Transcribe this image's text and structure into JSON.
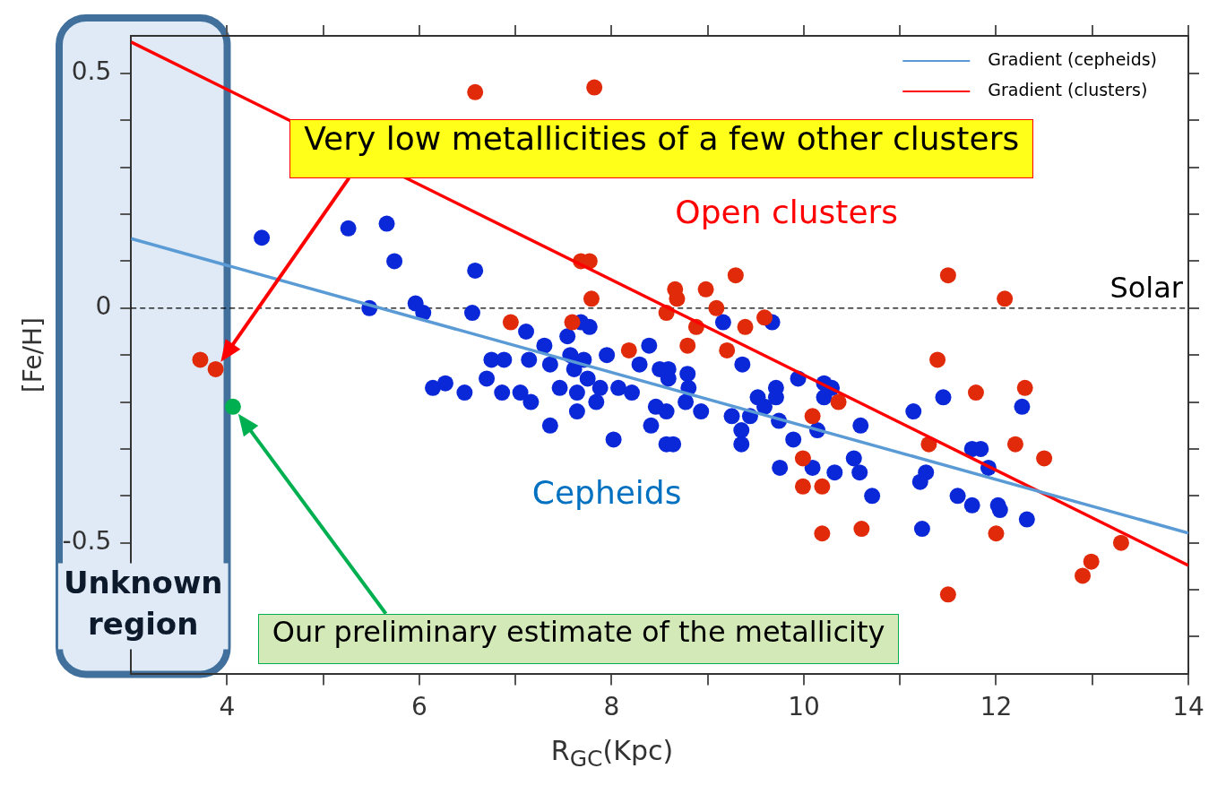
{
  "chart_data": {
    "type": "scatter",
    "xlabel": "R$_{GC}$(Kpc)",
    "ylabel": "[Fe/H]",
    "xlim": [
      3,
      14
    ],
    "xticks": [
      4,
      {
        "value": 5,
        "label": null
      },
      6,
      {
        "value": 7,
        "label": null
      },
      8,
      {
        "value": 9,
        "label": null
      },
      10,
      {
        "value": 11,
        "label": null
      },
      12,
      {
        "value": 13,
        "label": null
      },
      14
    ],
    "ylim": [
      -0.78,
      0.58
    ],
    "yticks": [
      {
        "value": -0.7,
        "label": null
      },
      {
        "value": -0.6,
        "label": null
      },
      -0.5,
      {
        "value": -0.4,
        "label": null
      },
      {
        "value": -0.3,
        "label": null
      },
      {
        "value": -0.2,
        "label": null
      },
      {
        "value": -0.1,
        "label": null
      },
      0,
      {
        "value": 0.1,
        "label": null
      },
      {
        "value": 0.2,
        "label": null
      },
      {
        "value": 0.3,
        "label": null
      },
      {
        "value": 0.4,
        "label": null
      },
      0.5
    ],
    "marker": "circle",
    "grid": false,
    "legend": "top right",
    "series": [
      {
        "name": "Open clusters",
        "type": "scatter",
        "color": "#e02a0a",
        "x": [
          3.72,
          3.88,
          6.58,
          7.82,
          7.68,
          7.77,
          7.79,
          6.95,
          7.59,
          8.18,
          9.29,
          8.66,
          8.98,
          8.68,
          9.09,
          8.57,
          9.59,
          9.39,
          8.88,
          8.79,
          9.2,
          11.5,
          12.09,
          10.36,
          10.09,
          11.39,
          11.79,
          12.3,
          11.3,
          12.2,
          12.5,
          9.99,
          9.99,
          10.19,
          10.19,
          10.6,
          12.0,
          13.3,
          12.99,
          12.9,
          11.5
        ],
        "values": [
          -0.11,
          -0.13,
          0.46,
          0.47,
          0.1,
          0.1,
          0.02,
          -0.03,
          -0.03,
          -0.09,
          0.07,
          0.04,
          0.04,
          0.02,
          0.0,
          -0.01,
          -0.02,
          -0.04,
          -0.04,
          -0.08,
          -0.09,
          0.07,
          0.02,
          -0.2,
          -0.23,
          -0.11,
          -0.18,
          -0.17,
          -0.29,
          -0.29,
          -0.32,
          -0.32,
          -0.38,
          -0.38,
          -0.48,
          -0.47,
          -0.48,
          -0.5,
          -0.54,
          -0.57,
          -0.61
        ]
      },
      {
        "name": "Cepheids",
        "type": "scatter",
        "color": "#0a28d8",
        "x": [
          4.36,
          5.26,
          5.66,
          5.74,
          6.58,
          5.48,
          5.96,
          6.04,
          6.55,
          7.11,
          7.77,
          7.68,
          8.39,
          7.3,
          7.54,
          6.75,
          6.88,
          7.14,
          7.36,
          7.57,
          7.71,
          7.95,
          8.29,
          8.5,
          6.7,
          7.61,
          7.75,
          7.88,
          8.07,
          8.21,
          7.46,
          7.64,
          6.14,
          6.27,
          6.47,
          6.86,
          7.05,
          7.16,
          7.84,
          7.64,
          8.46,
          7.36,
          8.02,
          8.41,
          8.57,
          8.59,
          8.59,
          8.79,
          8.8,
          8.57,
          8.77,
          8.93,
          8.64,
          9.16,
          9.67,
          9.36,
          9.25,
          9.44,
          9.35,
          9.35,
          9.52,
          9.71,
          9.71,
          9.59,
          9.74,
          9.89,
          9.75,
          9.94,
          10.21,
          10.29,
          10.21,
          10.14,
          10.09,
          10.32,
          10.59,
          10.52,
          10.58,
          10.71,
          11.14,
          11.45,
          12.27,
          11.75,
          11.84,
          11.92,
          11.27,
          11.21,
          11.6,
          11.75,
          12.02,
          12.04,
          12.32,
          11.23
        ],
        "values": [
          0.15,
          0.17,
          0.18,
          0.1,
          0.08,
          0.0,
          0.01,
          -0.01,
          -0.01,
          -0.05,
          -0.04,
          -0.03,
          -0.08,
          -0.08,
          -0.06,
          -0.11,
          -0.11,
          -0.11,
          -0.12,
          -0.1,
          -0.11,
          -0.1,
          -0.12,
          -0.13,
          -0.15,
          -0.13,
          -0.15,
          -0.17,
          -0.17,
          -0.18,
          -0.17,
          -0.18,
          -0.17,
          -0.16,
          -0.18,
          -0.18,
          -0.18,
          -0.2,
          -0.2,
          -0.22,
          -0.21,
          -0.25,
          -0.28,
          -0.25,
          -0.29,
          -0.13,
          -0.15,
          -0.14,
          -0.17,
          -0.22,
          -0.2,
          -0.22,
          -0.29,
          -0.03,
          -0.03,
          -0.12,
          -0.23,
          -0.23,
          -0.26,
          -0.29,
          -0.19,
          -0.17,
          -0.19,
          -0.21,
          -0.24,
          -0.28,
          -0.34,
          -0.15,
          -0.16,
          -0.17,
          -0.19,
          -0.26,
          -0.34,
          -0.35,
          -0.25,
          -0.32,
          -0.35,
          -0.4,
          -0.22,
          -0.19,
          -0.21,
          -0.3,
          -0.3,
          -0.34,
          -0.35,
          -0.37,
          -0.4,
          -0.42,
          -0.42,
          -0.43,
          -0.45,
          -0.47
        ]
      },
      {
        "type": "scatter",
        "color": "#00b050",
        "x": [
          4.06
        ],
        "values": [
          -0.21
        ]
      },
      {
        "name": "Gradient (cepheids)",
        "type": "line",
        "marker": "none",
        "color": "#5b9bd5",
        "x": [
          3,
          14
        ],
        "values": [
          0.148,
          -0.479
        ]
      },
      {
        "name": "Gradient (clusters)",
        "type": "line",
        "marker": "none",
        "color": "#ff0000",
        "x": [
          3,
          14
        ],
        "values": [
          0.567,
          -0.548
        ]
      }
    ],
    "ref_lines": [
      {
        "axis": "y",
        "value": 0,
        "label": "Solar",
        "color": "#000000",
        "line_style": "dashed"
      }
    ],
    "bands": [
      {
        "axis": "x",
        "from": 3,
        "to": 4,
        "label": "Unknown region",
        "color": "#dfeaf6"
      }
    ],
    "annotations": [
      "Very low metallicities of a few other clusters",
      "Our preliminary estimate of the metallicity"
    ]
  }
}
